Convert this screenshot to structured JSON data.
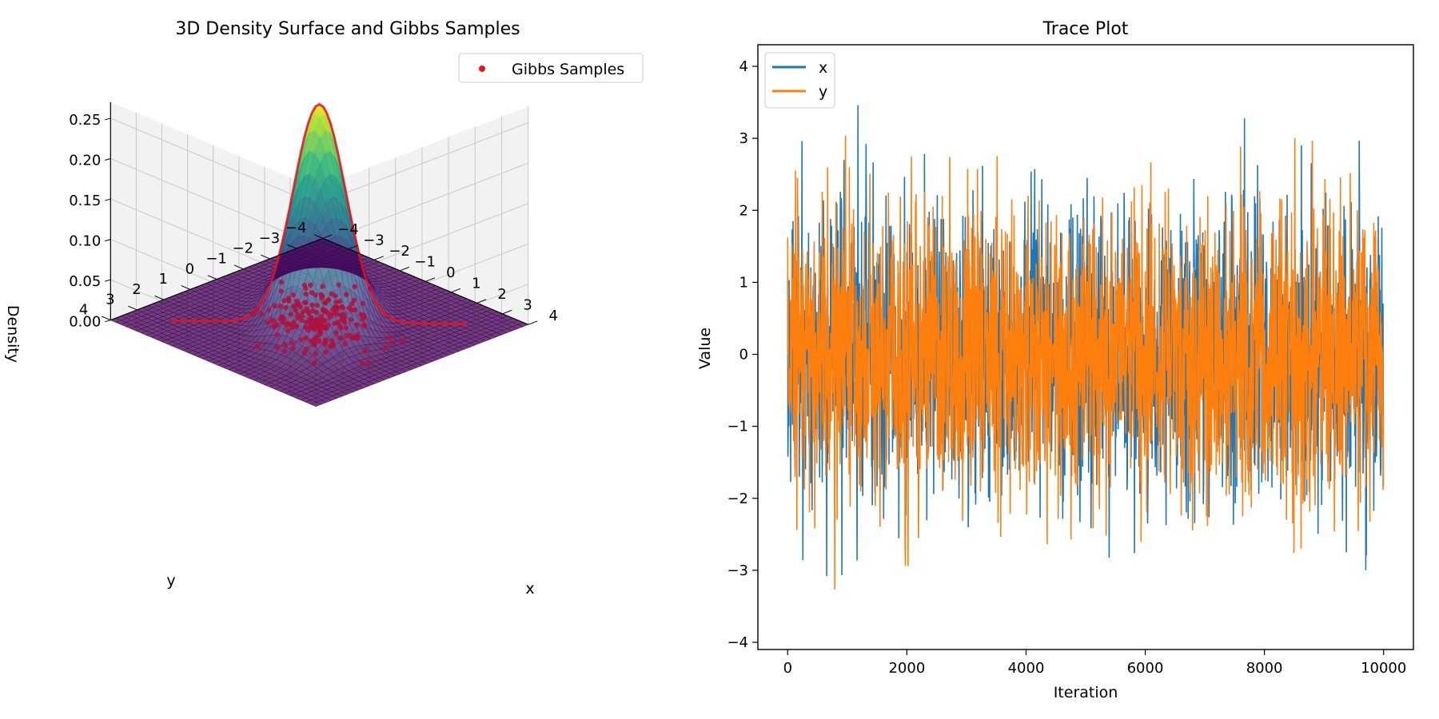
{
  "chart_data": [
    {
      "type": "surface3d",
      "title": "3D Density Surface and Gibbs Samples",
      "xlabel": "x",
      "ylabel": "y",
      "zlabel": "Density",
      "xlim": [
        -4,
        4
      ],
      "ylim": [
        -4,
        4
      ],
      "zlim": [
        0,
        0.27
      ],
      "x_ticks": [
        -4,
        -3,
        -2,
        -1,
        0,
        1,
        2,
        3,
        4
      ],
      "y_ticks": [
        -4,
        -3,
        -2,
        -1,
        0,
        1,
        2,
        3,
        4
      ],
      "z_ticks": [
        0.0,
        0.05,
        0.1,
        0.15,
        0.2,
        0.25
      ],
      "x_tick_labels": [
        "−4",
        "−3",
        "−2",
        "−1",
        "0",
        "1",
        "2",
        "3",
        "4"
      ],
      "y_tick_labels": [
        "−4",
        "−3",
        "−2",
        "−1",
        "0",
        "1",
        "2",
        "3",
        "4"
      ],
      "z_tick_labels": [
        "0.00",
        "0.05",
        "0.10",
        "0.15",
        "0.20",
        "0.25"
      ],
      "surface": {
        "function": "bivariate_normal",
        "mean": [
          0,
          0
        ],
        "rho": 0.5,
        "peak_density": 0.27,
        "colormap": "viridis"
      },
      "legend": {
        "entries": [
          "Gibbs Samples"
        ],
        "position": "upper-right"
      },
      "samples": {
        "name": "Gibbs Samples",
        "color": "#e8141c",
        "marker": "circle",
        "count_drawn": 200
      },
      "grid": true,
      "colors": {
        "pane": "#f2f2f2",
        "grid": "#cccccc",
        "samples": "#e8141c"
      }
    },
    {
      "type": "line",
      "title": "Trace Plot",
      "xlabel": "Iteration",
      "ylabel": "Value",
      "xlim": [
        -500,
        10500
      ],
      "ylim": [
        -4.1,
        4.3
      ],
      "x_ticks": [
        0,
        2000,
        4000,
        6000,
        8000,
        10000
      ],
      "y_ticks": [
        -4,
        -3,
        -2,
        -1,
        0,
        1,
        2,
        3,
        4
      ],
      "x_tick_labels": [
        "0",
        "2000",
        "4000",
        "6000",
        "8000",
        "10000"
      ],
      "y_tick_labels": [
        "−4",
        "−3",
        "−2",
        "−1",
        "0",
        "1",
        "2",
        "3",
        "4"
      ],
      "legend": {
        "entries": [
          "x",
          "y"
        ],
        "position": "upper-left"
      },
      "series": [
        {
          "name": "x",
          "color": "#1f77b4",
          "n_iterations": 10000,
          "mean": 0,
          "sd": 1,
          "min": -3.72,
          "max": 3.9
        },
        {
          "name": "y",
          "color": "#ff7f0e",
          "n_iterations": 10000,
          "mean": 0,
          "sd": 1,
          "min": -3.68,
          "max": 3.85
        }
      ],
      "grid": false
    }
  ]
}
